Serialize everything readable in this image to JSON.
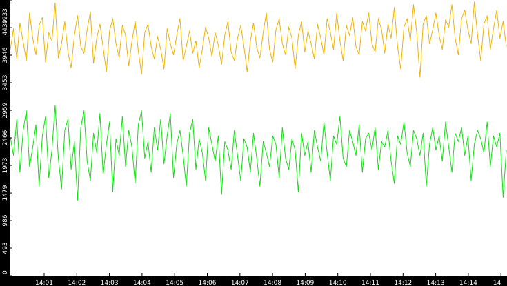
{
  "chart_data": {
    "type": "line",
    "title": "",
    "xlabel": "",
    "ylabel": "",
    "background": "#ffffff",
    "frame_color": "#000000",
    "grid": false,
    "x_ticks": [
      "14:01",
      "14:02",
      "14:03",
      "14:04",
      "14:05",
      "14:06",
      "14:07",
      "14:08",
      "14:09",
      "14:10",
      "14:11",
      "14:12",
      "14:13",
      "14:14",
      "14"
    ],
    "y_ticks": [
      0,
      493,
      986,
      1479,
      1973,
      2466,
      2959,
      3453,
      3946,
      4439,
      4933
    ],
    "ylim": [
      0,
      4933
    ],
    "series": [
      {
        "color": "#f0b400",
        "values": [
          4050,
          4420,
          3880,
          4520,
          4180,
          3850,
          4700,
          4250,
          3950,
          4480,
          4620,
          3820,
          4350,
          4200,
          4880,
          3900,
          4150,
          4550,
          4000,
          3720,
          4300,
          4650,
          4100,
          3980,
          4400,
          4720,
          3800,
          4250,
          4500,
          4080,
          3650,
          4380,
          4600,
          4150,
          3900,
          4480,
          4300,
          3750,
          4200,
          4550,
          4020,
          3600,
          4350,
          4500,
          4100,
          3880,
          4280,
          4050,
          3700,
          4420,
          4150,
          3950,
          4300,
          4600,
          3850,
          4100,
          4380,
          3980,
          4200,
          3720,
          4050,
          4450,
          4250,
          3920,
          4350,
          4120,
          3780,
          4300,
          4550,
          4000,
          3850,
          4250,
          4480,
          4100,
          3650,
          4200,
          4520,
          4080,
          3900,
          4350,
          4700,
          4050,
          3820,
          4400,
          4600,
          4150,
          3950,
          4450,
          4250,
          3700,
          4300,
          4550,
          4000,
          4380,
          4150,
          3880,
          4500,
          4250,
          3950,
          4600,
          4350,
          4050,
          4700,
          4200,
          3850,
          4480,
          4300,
          4620,
          4100,
          3950,
          4550,
          4380,
          4700,
          4150,
          4000,
          4600,
          4400,
          3980,
          4500,
          4250,
          4800,
          4100,
          3700,
          4450,
          4600,
          4200,
          4850,
          4350,
          3550,
          4500,
          4650,
          4150,
          4400,
          4700,
          4300,
          4050,
          4580,
          4450,
          4850,
          4250,
          3950,
          4600,
          4750,
          4400,
          4150,
          4900,
          4300,
          3850,
          4500,
          4650,
          4050,
          4420,
          4750,
          4250,
          4550,
          4100
        ]
      },
      {
        "color": "#10e010",
        "values": [
          2480,
          2150,
          2800,
          1850,
          2600,
          2950,
          1950,
          2300,
          2700,
          1600,
          2500,
          2850,
          1750,
          2250,
          3050,
          2100,
          1550,
          2600,
          2800,
          1900,
          2400,
          1350,
          2650,
          2950,
          2050,
          1700,
          2550,
          2200,
          2900,
          1800,
          2350,
          2750,
          1500,
          2450,
          2150,
          2850,
          1950,
          2600,
          2300,
          1650,
          2700,
          2950,
          2100,
          2400,
          1850,
          2650,
          2250,
          2800,
          2000,
          2500,
          2900,
          1750,
          2350,
          2600,
          2150,
          1600,
          2550,
          2800,
          1900,
          2450,
          2200,
          1700,
          2650,
          2350,
          2050,
          2500,
          1450,
          2400,
          2250,
          1900,
          2600,
          2150,
          1700,
          2450,
          2300,
          1850,
          2550,
          2100,
          1600,
          2400,
          2200,
          1950,
          2500,
          2350,
          1750,
          2650,
          2100,
          1900,
          2450,
          2250,
          1500,
          2550,
          2150,
          2400,
          1850,
          2600,
          2300,
          2050,
          2750,
          2200,
          1700,
          2500,
          2350,
          2850,
          2100,
          1950,
          2600,
          2400,
          2150,
          2700,
          1850,
          2450,
          2550,
          2250,
          2650,
          1900,
          2400,
          2300,
          2600,
          2050,
          1650,
          2500,
          2350,
          2750,
          2200,
          1950,
          2600,
          2450,
          2150,
          2550,
          1600,
          2350,
          2650,
          2250,
          2500,
          2050,
          2750,
          2300,
          1850,
          2550,
          2400,
          2650,
          2150,
          2500,
          1700,
          2350,
          2600,
          2450,
          2200,
          2750,
          1950,
          2500,
          2300,
          2550,
          1400,
          2250
        ]
      }
    ]
  }
}
